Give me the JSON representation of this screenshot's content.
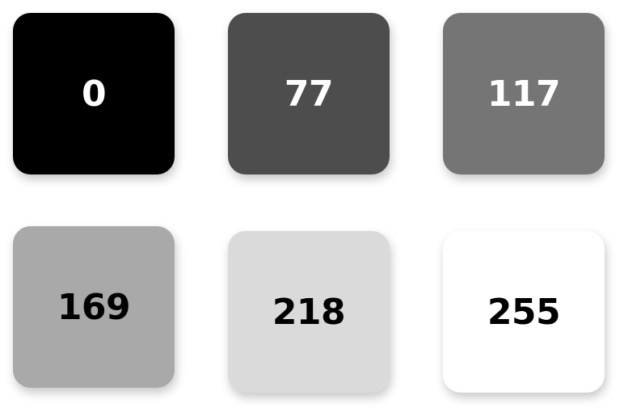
{
  "swatches": [
    {
      "label": "0",
      "background": "#000000",
      "text_color": "#ffffff"
    },
    {
      "label": "77",
      "background": "#4d4d4d",
      "text_color": "#ffffff"
    },
    {
      "label": "117",
      "background": "#757575",
      "text_color": "#ffffff"
    },
    {
      "label": "169",
      "background": "#a9a9a9",
      "text_color": "#000000"
    },
    {
      "label": "218",
      "background": "#dadada",
      "text_color": "#000000"
    },
    {
      "label": "255",
      "background": "#ffffff",
      "text_color": "#000000"
    }
  ]
}
